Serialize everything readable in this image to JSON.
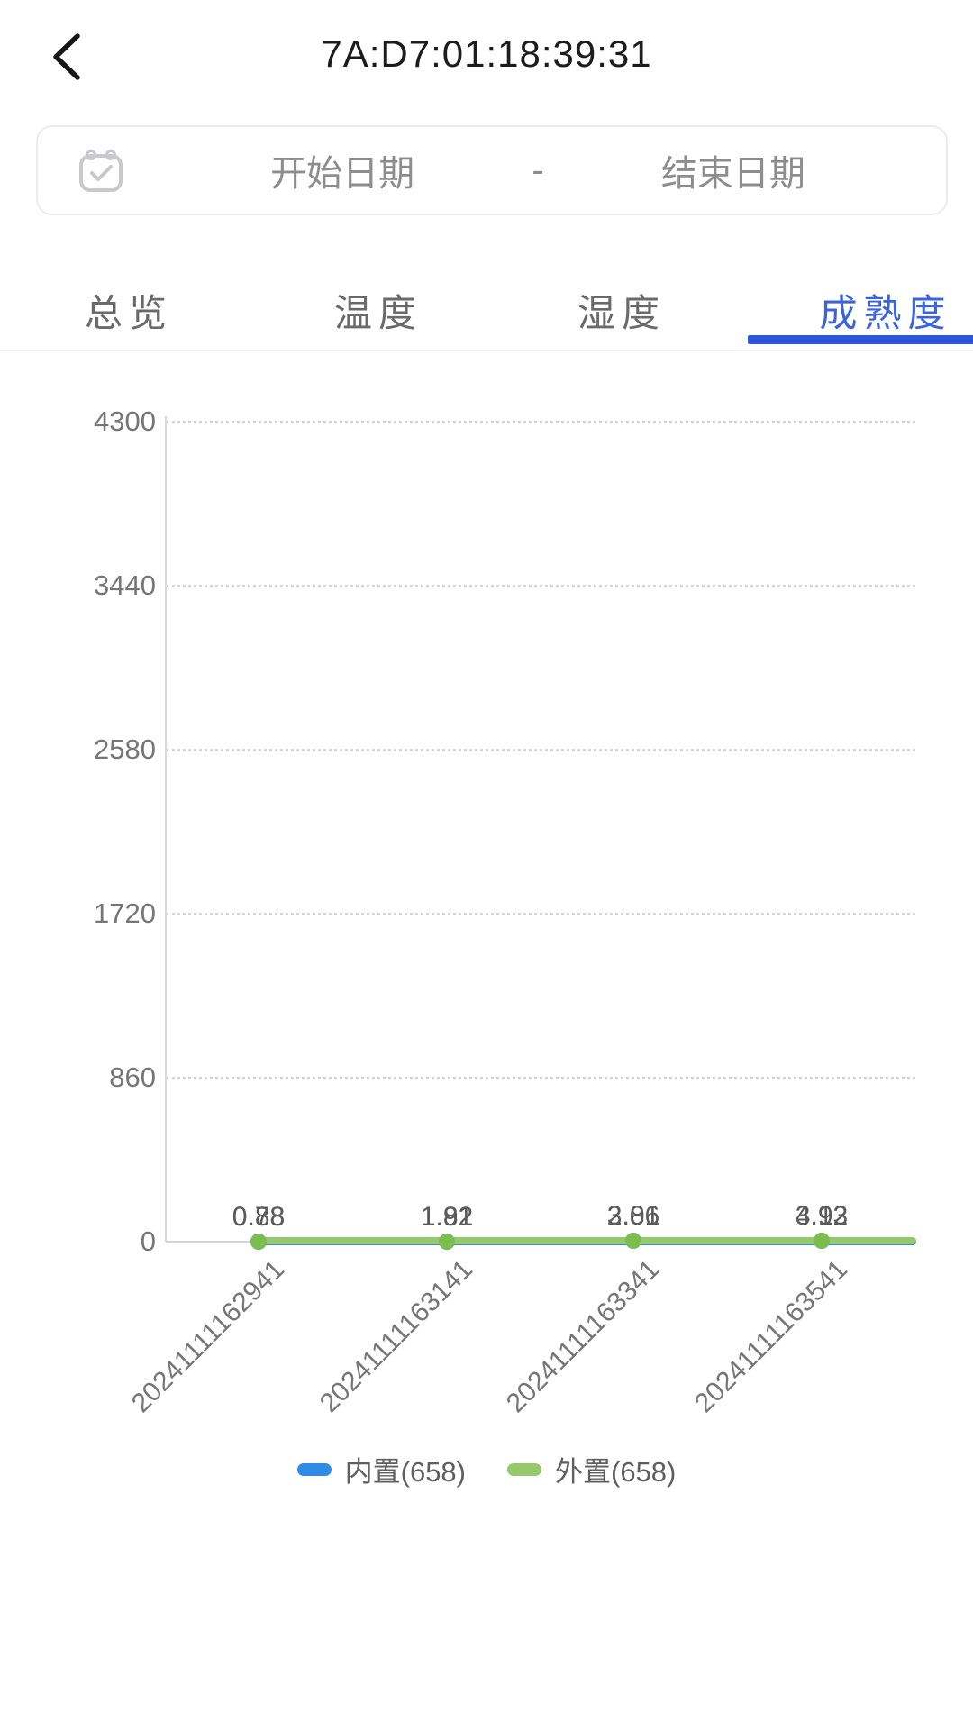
{
  "header": {
    "title": "7A:D7:01:18:39:31"
  },
  "date_filter": {
    "start_placeholder": "开始日期",
    "separator": "-",
    "end_placeholder": "结束日期"
  },
  "tabs": [
    {
      "label": "总览",
      "active": false
    },
    {
      "label": "温度",
      "active": false
    },
    {
      "label": "湿度",
      "active": false
    },
    {
      "label": "成熟度",
      "active": true
    }
  ],
  "colors": {
    "active_tab": "#3a63dc",
    "tab_indicator": "#2e56db",
    "inactive_tab": "#6a6a6a",
    "axis_text": "#767676",
    "data_label_text": "#5a5a5a",
    "grid": "#d7d7d7",
    "blue_series": "#2e8be6",
    "green_series": "#95c96b",
    "green_dot": "#7cbd4f"
  },
  "chart_data": {
    "type": "line",
    "title": "",
    "xlabel": "",
    "ylabel": "",
    "x": [
      "20241111162941",
      "20241111163141",
      "20241111163341",
      "20241111163541"
    ],
    "series": [
      {
        "name": "内置(658)",
        "color": "#2e8be6",
        "dot_color": "#2e8be6",
        "values": [
          0.78,
          1.81,
          2.86,
          3.92
        ],
        "labels": [
          "0.78",
          "1.81",
          "2.86",
          "3.92"
        ]
      },
      {
        "name": "外置(658)",
        "color": "#95c96b",
        "dot_color": "#7cbd4f",
        "values": [
          0.88,
          1.92,
          3.01,
          4.13
        ],
        "labels": [
          "0.88",
          "1.92",
          "3.01",
          "4.13"
        ]
      }
    ],
    "y_ticks": [
      0,
      860,
      1720,
      2580,
      3440,
      4300
    ],
    "ylim": [
      0,
      4300
    ],
    "grid": "horizontal-dotted",
    "legend_position": "bottom",
    "x_label_rotation": 45
  }
}
